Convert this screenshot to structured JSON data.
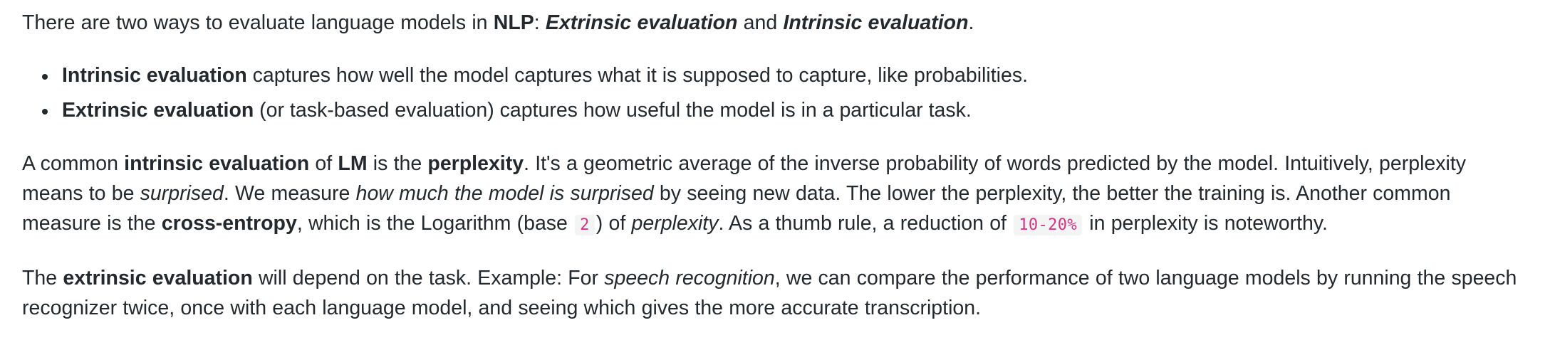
{
  "intro": {
    "t1": "There are two ways to evaluate language models in ",
    "b1": "NLP",
    "t2": ": ",
    "bi1": "Extrinsic evaluation",
    "t3": " and ",
    "bi2": "Intrinsic evaluation",
    "t4": "."
  },
  "bullets": [
    {
      "bold": "Intrinsic evaluation",
      "text": " captures how well the model captures what it is supposed to capture, like probabilities."
    },
    {
      "bold": "Extrinsic evaluation",
      "text": " (or task-based evaluation) captures how useful the model is in a particular task."
    }
  ],
  "perplexity": {
    "t1": "A common ",
    "b1": "intrinsic evaluation",
    "t2": " of ",
    "b2": "LM",
    "t3": " is the ",
    "b3": "perplexity",
    "t4": ". It's a geometric average of the inverse probability of words predicted by the model. Intuitively, perplexity means to be ",
    "i1": "surprised",
    "t5": ". We measure ",
    "i2": "how much the model is surprised",
    "t6": " by seeing new data. The lower the perplexity, the better the training is. Another common measure is the ",
    "b4": "cross-entropy",
    "t7": ", which is the Logarithm (base ",
    "c1": "2",
    "t8": ") of ",
    "i3": "perplexity",
    "t9": ". As a thumb rule, a reduction of ",
    "c2": "10-20%",
    "t10": " in perplexity is noteworthy."
  },
  "extrinsic": {
    "t1": "The ",
    "b1": "extrinsic evaluation",
    "t2": " will depend on the task. Example: For ",
    "i1": "speech recognition",
    "t3": ", we can compare the performance of two language models by running the speech recognizer twice, once with each language model, and seeing which gives the more accurate transcription."
  },
  "colors": {
    "text": "#24292e",
    "code_text": "#d63384",
    "code_background": "#f3f4f4"
  }
}
